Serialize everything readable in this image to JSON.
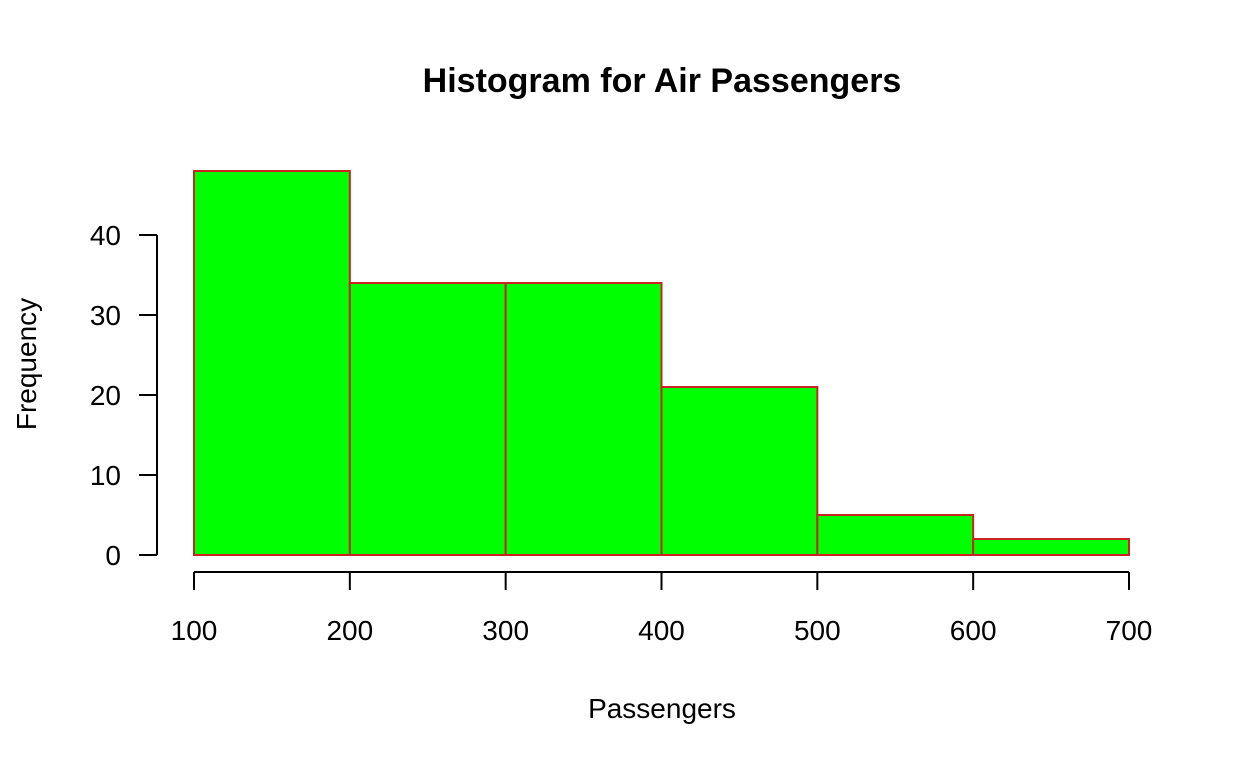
{
  "chart_data": {
    "type": "bar",
    "title": "Histogram for Air Passengers",
    "xlabel": "Passengers",
    "ylabel": "Frequency",
    "bins": [
      {
        "from": 100,
        "to": 200,
        "count": 48
      },
      {
        "from": 200,
        "to": 300,
        "count": 34
      },
      {
        "from": 300,
        "to": 400,
        "count": 34
      },
      {
        "from": 400,
        "to": 500,
        "count": 21
      },
      {
        "from": 500,
        "to": 600,
        "count": 5
      },
      {
        "from": 600,
        "to": 700,
        "count": 2
      }
    ],
    "categories": [
      "100-200",
      "200-300",
      "300-400",
      "400-500",
      "500-600",
      "600-700"
    ],
    "values": [
      48,
      34,
      34,
      21,
      5,
      2
    ],
    "xlim": [
      100,
      700
    ],
    "ylim": [
      0,
      48
    ],
    "x_ticks": [
      100,
      200,
      300,
      400,
      500,
      600,
      700
    ],
    "y_ticks": [
      0,
      10,
      20,
      30,
      40
    ],
    "grid": false,
    "legend": "none",
    "colors": {
      "bar_fill": "#00ff00",
      "bar_border": "#cc2222",
      "axis": "#000000",
      "text": "#000000",
      "background": "#ffffff"
    }
  }
}
